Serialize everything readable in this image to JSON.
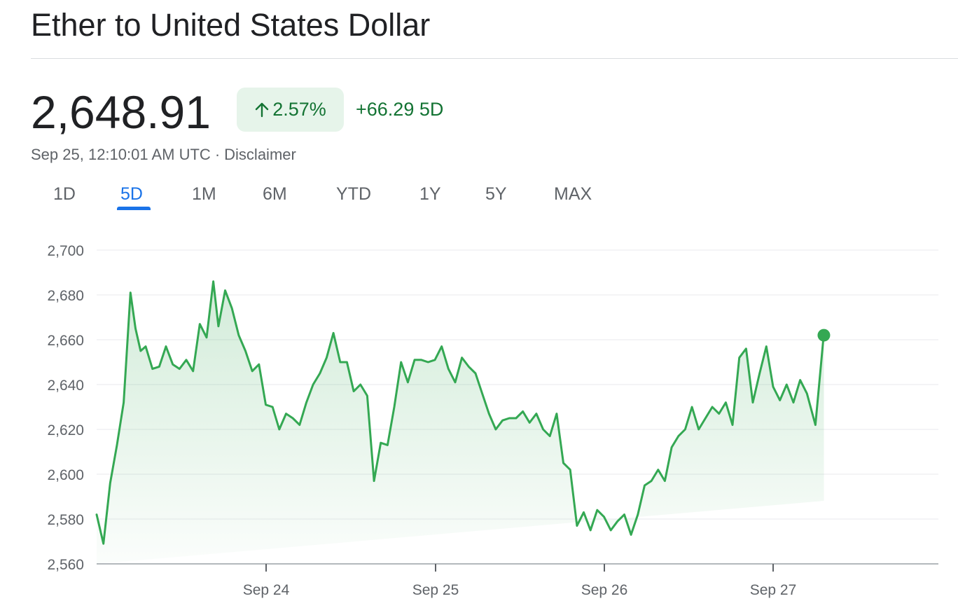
{
  "header": {
    "title": "Ether to United States Dollar"
  },
  "quote": {
    "price": "2,648.91",
    "change_percent": "2.57%",
    "change_abs": "+66.29 5D",
    "timestamp": "Sep 25, 12:10:01 AM UTC",
    "separator": "·",
    "disclaimer": "Disclaimer"
  },
  "tabs": [
    {
      "label": "1D"
    },
    {
      "label": "5D",
      "active": true
    },
    {
      "label": "1M"
    },
    {
      "label": "6M"
    },
    {
      "label": "YTD"
    },
    {
      "label": "1Y"
    },
    {
      "label": "5Y"
    },
    {
      "label": "MAX"
    }
  ],
  "colors": {
    "positive": "#137333",
    "line": "#34a853",
    "accent": "#1a73e8"
  },
  "chart_data": {
    "type": "area",
    "title": "",
    "xlabel": "",
    "ylabel": "",
    "ylim": [
      2560,
      2700
    ],
    "yticks": [
      "2,700",
      "2,680",
      "2,660",
      "2,640",
      "2,620",
      "2,600",
      "2,580",
      "2,560"
    ],
    "xticks": [
      "Sep 24",
      "Sep 25",
      "Sep 26",
      "Sep 27"
    ],
    "grid": true,
    "series": [
      {
        "x": [
          0,
          0.04,
          0.08,
          0.12,
          0.16,
          0.2,
          0.23,
          0.26,
          0.29,
          0.33,
          0.37,
          0.41,
          0.45,
          0.49,
          0.53,
          0.57,
          0.61,
          0.65,
          0.69,
          0.72,
          0.76,
          0.8,
          0.84,
          0.88,
          0.92,
          0.96,
          1.0,
          1.04,
          1.08,
          1.12,
          1.16,
          1.2,
          1.24,
          1.28,
          1.32,
          1.36,
          1.4,
          1.44,
          1.48,
          1.52,
          1.56,
          1.6,
          1.64,
          1.68,
          1.72,
          1.76,
          1.8,
          1.84,
          1.88,
          1.92,
          1.96,
          2.0,
          2.04,
          2.08,
          2.12,
          2.16,
          2.2,
          2.24,
          2.28,
          2.32,
          2.36,
          2.4,
          2.44,
          2.48,
          2.52,
          2.56,
          2.6,
          2.64,
          2.68,
          2.72,
          2.76,
          2.8,
          2.84,
          2.88,
          2.92,
          2.96,
          3.0,
          3.04,
          3.08,
          3.12,
          3.16,
          3.2,
          3.24,
          3.28,
          3.32,
          3.36,
          3.4,
          3.44,
          3.48,
          3.52,
          3.56,
          3.6,
          3.64,
          3.68,
          3.72,
          3.76,
          3.8,
          3.84,
          3.88,
          3.92,
          3.96,
          4.0,
          4.04,
          4.08,
          4.12,
          4.16,
          4.2,
          4.25,
          4.3
        ],
        "values": [
          2582,
          2569,
          2596,
          2613,
          2632,
          2681,
          2665,
          2655,
          2657,
          2647,
          2648,
          2657,
          2649,
          2647,
          2651,
          2646,
          2667,
          2661,
          2686,
          2666,
          2682,
          2674,
          2662,
          2655,
          2646,
          2649,
          2631,
          2630,
          2620,
          2627,
          2625,
          2622,
          2632,
          2640,
          2645,
          2652,
          2663,
          2650,
          2650,
          2637,
          2640,
          2635,
          2597,
          2614,
          2613,
          2630,
          2650,
          2641,
          2651,
          2651,
          2650,
          2651,
          2657,
          2647,
          2641,
          2652,
          2648,
          2645,
          2636,
          2627,
          2620,
          2624,
          2625,
          2625,
          2628,
          2623,
          2627,
          2620,
          2617,
          2627,
          2605,
          2602,
          2577,
          2583,
          2575,
          2584,
          2581,
          2575,
          2579,
          2582,
          2573,
          2582,
          2595,
          2597,
          2602,
          2597,
          2612,
          2617,
          2620,
          2630,
          2620,
          2625,
          2630,
          2627,
          2632,
          2622,
          2652,
          2656,
          2632,
          2645,
          2657,
          2639,
          2633,
          2640,
          2632,
          2642,
          2636,
          2622,
          2663
        ]
      }
    ],
    "last_value": 2662,
    "current_point_x": 4.3
  }
}
